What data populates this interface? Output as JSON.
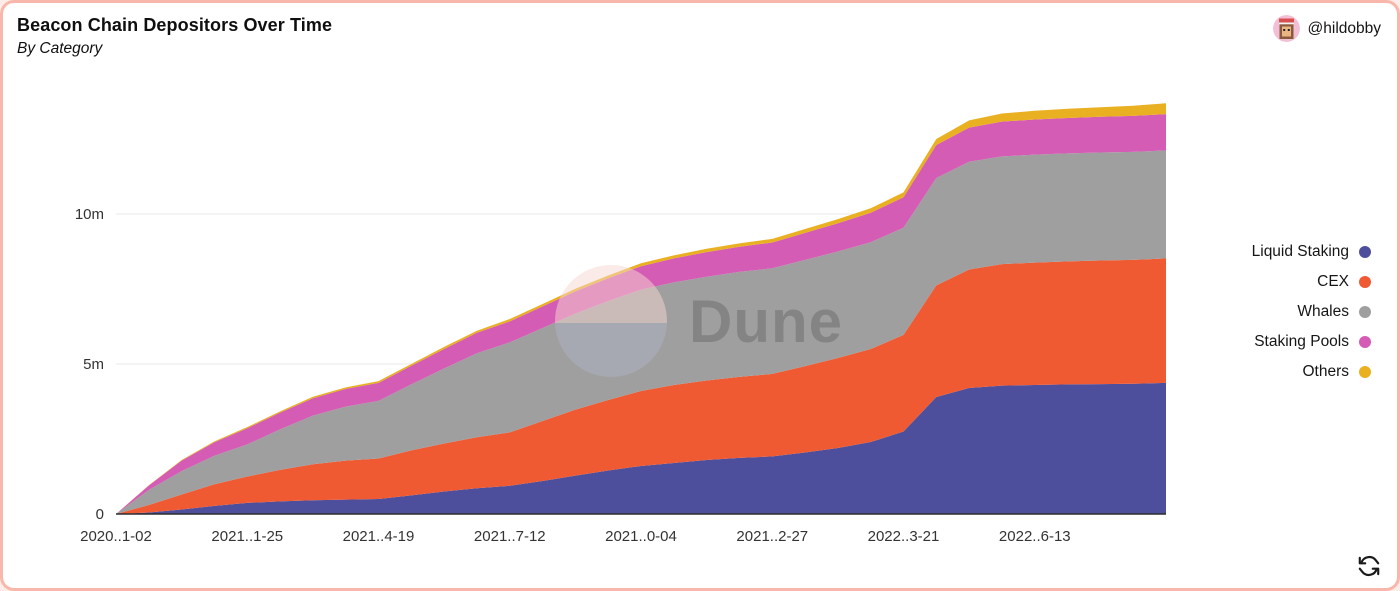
{
  "header": {
    "title": "Beacon Chain Depositors Over Time",
    "subtitle": "By Category",
    "author": "@hildobby"
  },
  "watermark": "Dune",
  "refresh_button": {
    "icon": "refresh-icon"
  },
  "chart_data": {
    "type": "area",
    "stacked": true,
    "title": "Beacon Chain Depositors Over Time",
    "subtitle": "By Category",
    "legend_position": "right",
    "grid": "horizontal",
    "y_tick_suffix": "m",
    "ylim": [
      0,
      13.7
    ],
    "y_ticks": [
      {
        "value": 0,
        "label": "0"
      },
      {
        "value": 5,
        "label": "5m"
      },
      {
        "value": 10,
        "label": "10m"
      }
    ],
    "x_ticks": [
      {
        "index": 0,
        "label": "2020..1-02"
      },
      {
        "index": 4,
        "label": "2021..1-25"
      },
      {
        "index": 8,
        "label": "2021..4-19"
      },
      {
        "index": 12,
        "label": "2021..7-12"
      },
      {
        "index": 16,
        "label": "2021..0-04"
      },
      {
        "index": 20,
        "label": "2021..2-27"
      },
      {
        "index": 24,
        "label": "2022..3-21"
      },
      {
        "index": 28,
        "label": "2022..6-13"
      }
    ],
    "x_dates": [
      "2020-11-02",
      "2020-11-23",
      "2020-12-14",
      "2021-01-04",
      "2021-01-25",
      "2021-02-15",
      "2021-03-08",
      "2021-03-29",
      "2021-04-19",
      "2021-05-10",
      "2021-05-31",
      "2021-06-21",
      "2021-07-12",
      "2021-08-02",
      "2021-08-23",
      "2021-09-13",
      "2021-10-04",
      "2021-10-25",
      "2021-11-15",
      "2021-12-06",
      "2021-12-27",
      "2022-01-17",
      "2022-02-07",
      "2022-02-28",
      "2022-03-21",
      "2022-04-11",
      "2022-05-02",
      "2022-05-23",
      "2022-06-13",
      "2022-07-04",
      "2022-07-25",
      "2022-08-15",
      "2022-09-05"
    ],
    "series": [
      {
        "name": "Liquid Staking",
        "key": "liquid-staking",
        "color": "#4d4f9d",
        "values": [
          0,
          0.05,
          0.15,
          0.27,
          0.37,
          0.42,
          0.46,
          0.48,
          0.5,
          0.62,
          0.75,
          0.86,
          0.94,
          1.1,
          1.28,
          1.45,
          1.6,
          1.7,
          1.8,
          1.87,
          1.92,
          2.05,
          2.2,
          2.4,
          2.75,
          3.9,
          4.2,
          4.28,
          4.3,
          4.32,
          4.33,
          4.34,
          4.37
        ]
      },
      {
        "name": "CEX",
        "key": "cex",
        "color": "#ef5a33",
        "values": [
          0,
          0.25,
          0.5,
          0.72,
          0.88,
          1.05,
          1.2,
          1.3,
          1.35,
          1.5,
          1.6,
          1.7,
          1.78,
          2.0,
          2.2,
          2.35,
          2.5,
          2.6,
          2.65,
          2.7,
          2.75,
          2.88,
          3.0,
          3.1,
          3.22,
          3.72,
          3.95,
          4.05,
          4.08,
          4.1,
          4.12,
          4.13,
          4.15
        ]
      },
      {
        "name": "Whales",
        "key": "whales",
        "color": "#9f9f9f",
        "values": [
          0,
          0.5,
          0.78,
          0.95,
          1.07,
          1.35,
          1.62,
          1.8,
          1.92,
          2.2,
          2.5,
          2.8,
          3.0,
          3.1,
          3.2,
          3.3,
          3.38,
          3.42,
          3.46,
          3.5,
          3.52,
          3.54,
          3.55,
          3.56,
          3.57,
          3.58,
          3.59,
          3.59,
          3.6,
          3.6,
          3.6,
          3.6,
          3.6
        ]
      },
      {
        "name": "Staking Pools",
        "key": "staking-pools",
        "color": "#d45cb5",
        "values": [
          0,
          0.15,
          0.35,
          0.45,
          0.54,
          0.56,
          0.58,
          0.59,
          0.6,
          0.62,
          0.65,
          0.68,
          0.7,
          0.72,
          0.74,
          0.76,
          0.78,
          0.8,
          0.82,
          0.84,
          0.86,
          0.9,
          0.94,
          0.98,
          1.02,
          1.1,
          1.14,
          1.16,
          1.17,
          1.18,
          1.19,
          1.2,
          1.21
        ]
      },
      {
        "name": "Others",
        "key": "others",
        "color": "#e9b021",
        "values": [
          0,
          0.01,
          0.02,
          0.03,
          0.04,
          0.04,
          0.05,
          0.05,
          0.06,
          0.06,
          0.07,
          0.07,
          0.08,
          0.08,
          0.09,
          0.09,
          0.1,
          0.1,
          0.11,
          0.11,
          0.12,
          0.13,
          0.14,
          0.15,
          0.16,
          0.2,
          0.24,
          0.27,
          0.29,
          0.31,
          0.32,
          0.34,
          0.36
        ]
      }
    ]
  }
}
